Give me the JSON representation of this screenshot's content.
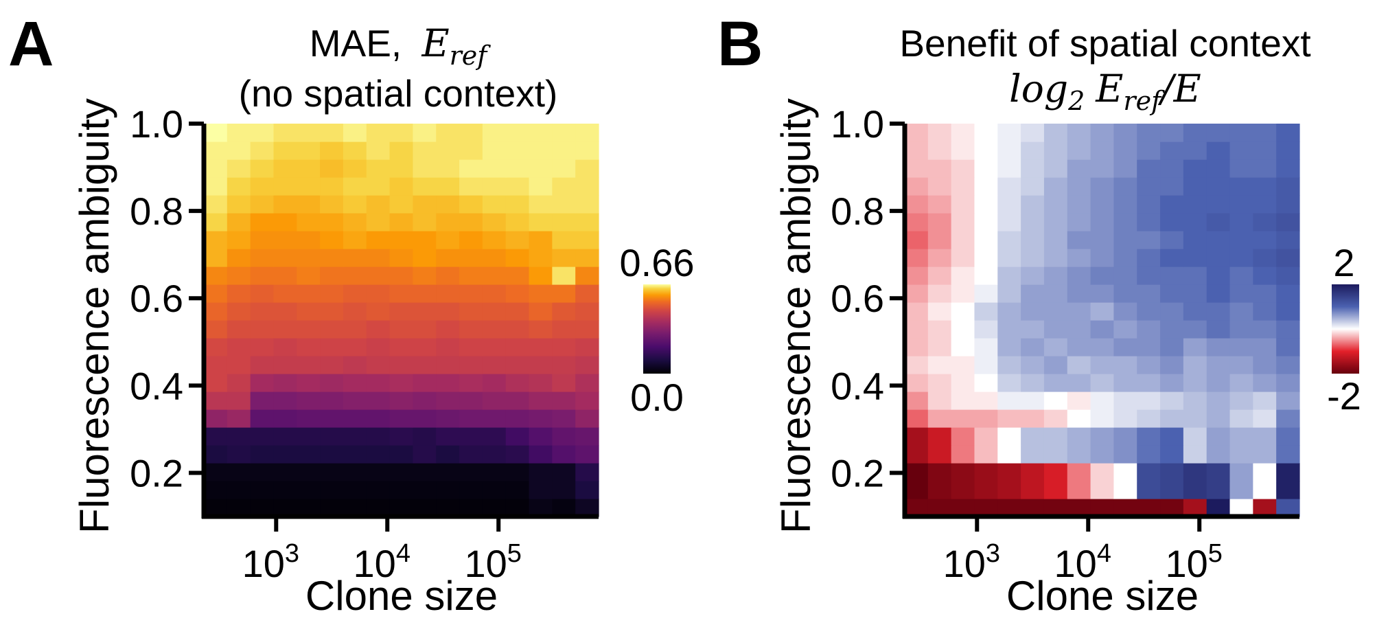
{
  "panel_labels": [
    "A",
    "B"
  ],
  "chart_data": [
    {
      "type": "heatmap",
      "panel": "A",
      "title_line1_text": "MAE,",
      "title_line1_math": {
        "base": "E",
        "sub": "ref"
      },
      "title_line2": "(no spatial context)",
      "xlabel": "Clone size",
      "ylabel": "Fluorescence ambiguity",
      "x_scale": "log10",
      "x_ticks": [
        {
          "base": "10",
          "exp": "3",
          "log": 3
        },
        {
          "base": "10",
          "exp": "4",
          "log": 4
        },
        {
          "base": "10",
          "exp": "5",
          "log": 5
        }
      ],
      "x_range_log10": [
        2.35,
        5.9
      ],
      "y_ticks": [
        "0.2",
        "0.4",
        "0.6",
        "0.8",
        "1.0"
      ],
      "y_tick_values": [
        0.2,
        0.4,
        0.6,
        0.8,
        1.0
      ],
      "y_range": [
        0.1,
        1.0
      ],
      "rows": 22,
      "cols": 17,
      "colormap": "inferno",
      "colorbar": {
        "max_label": "0.66",
        "min_label": "0.0",
        "max": 0.66,
        "min": 0.0
      },
      "grid": false,
      "values": [
        [
          0.01,
          0.01,
          0.01,
          0.01,
          0.01,
          0.01,
          0.01,
          0.01,
          0.01,
          0.01,
          0.01,
          0.01,
          0.01,
          0.01,
          0.03,
          0.02,
          0.05
        ],
        [
          0.02,
          0.02,
          0.02,
          0.02,
          0.02,
          0.02,
          0.02,
          0.02,
          0.02,
          0.02,
          0.02,
          0.02,
          0.02,
          0.02,
          0.05,
          0.05,
          0.1
        ],
        [
          0.03,
          0.03,
          0.03,
          0.03,
          0.03,
          0.03,
          0.03,
          0.03,
          0.03,
          0.03,
          0.03,
          0.03,
          0.03,
          0.03,
          0.05,
          0.05,
          0.12
        ],
        [
          0.1,
          0.11,
          0.1,
          0.1,
          0.1,
          0.1,
          0.1,
          0.1,
          0.1,
          0.12,
          0.1,
          0.12,
          0.12,
          0.13,
          0.18,
          0.22,
          0.24
        ],
        [
          0.12,
          0.12,
          0.12,
          0.12,
          0.12,
          0.12,
          0.12,
          0.12,
          0.13,
          0.12,
          0.14,
          0.14,
          0.14,
          0.18,
          0.22,
          0.25,
          0.26
        ],
        [
          0.34,
          0.36,
          0.24,
          0.24,
          0.25,
          0.25,
          0.25,
          0.25,
          0.26,
          0.26,
          0.27,
          0.28,
          0.28,
          0.28,
          0.29,
          0.3,
          0.34
        ],
        [
          0.42,
          0.42,
          0.3,
          0.3,
          0.31,
          0.31,
          0.32,
          0.32,
          0.33,
          0.32,
          0.33,
          0.33,
          0.34,
          0.34,
          0.36,
          0.36,
          0.38
        ],
        [
          0.46,
          0.44,
          0.38,
          0.37,
          0.38,
          0.37,
          0.38,
          0.38,
          0.39,
          0.38,
          0.38,
          0.39,
          0.38,
          0.4,
          0.41,
          0.43,
          0.4
        ],
        [
          0.46,
          0.46,
          0.44,
          0.44,
          0.44,
          0.44,
          0.43,
          0.44,
          0.44,
          0.44,
          0.44,
          0.44,
          0.44,
          0.44,
          0.44,
          0.44,
          0.43
        ],
        [
          0.47,
          0.46,
          0.46,
          0.45,
          0.46,
          0.46,
          0.46,
          0.45,
          0.46,
          0.46,
          0.45,
          0.46,
          0.46,
          0.46,
          0.46,
          0.46,
          0.45
        ],
        [
          0.5,
          0.48,
          0.48,
          0.48,
          0.48,
          0.48,
          0.48,
          0.47,
          0.48,
          0.48,
          0.47,
          0.48,
          0.48,
          0.48,
          0.49,
          0.48,
          0.48
        ],
        [
          0.52,
          0.5,
          0.49,
          0.49,
          0.5,
          0.5,
          0.49,
          0.5,
          0.49,
          0.49,
          0.49,
          0.5,
          0.5,
          0.5,
          0.52,
          0.5,
          0.49
        ],
        [
          0.54,
          0.52,
          0.51,
          0.52,
          0.52,
          0.52,
          0.51,
          0.51,
          0.52,
          0.52,
          0.52,
          0.52,
          0.52,
          0.53,
          0.54,
          0.54,
          0.51
        ],
        [
          0.56,
          0.55,
          0.54,
          0.54,
          0.55,
          0.54,
          0.54,
          0.54,
          0.54,
          0.55,
          0.54,
          0.55,
          0.55,
          0.55,
          0.58,
          0.64,
          0.56
        ],
        [
          0.6,
          0.57,
          0.56,
          0.56,
          0.56,
          0.56,
          0.56,
          0.56,
          0.57,
          0.58,
          0.57,
          0.57,
          0.57,
          0.58,
          0.59,
          0.6,
          0.6
        ],
        [
          0.6,
          0.59,
          0.57,
          0.57,
          0.57,
          0.58,
          0.59,
          0.58,
          0.58,
          0.58,
          0.59,
          0.58,
          0.59,
          0.6,
          0.59,
          0.62,
          0.62
        ],
        [
          0.63,
          0.6,
          0.58,
          0.58,
          0.59,
          0.59,
          0.6,
          0.61,
          0.6,
          0.61,
          0.6,
          0.6,
          0.61,
          0.62,
          0.63,
          0.63,
          0.63
        ],
        [
          0.64,
          0.62,
          0.61,
          0.6,
          0.6,
          0.61,
          0.62,
          0.61,
          0.62,
          0.61,
          0.61,
          0.62,
          0.63,
          0.63,
          0.64,
          0.64,
          0.64
        ],
        [
          0.65,
          0.63,
          0.62,
          0.62,
          0.62,
          0.62,
          0.63,
          0.63,
          0.62,
          0.63,
          0.63,
          0.64,
          0.64,
          0.64,
          0.65,
          0.64,
          0.64
        ],
        [
          0.65,
          0.64,
          0.63,
          0.62,
          0.62,
          0.61,
          0.62,
          0.63,
          0.63,
          0.64,
          0.64,
          0.65,
          0.65,
          0.65,
          0.65,
          0.65,
          0.64
        ],
        [
          0.65,
          0.65,
          0.64,
          0.63,
          0.63,
          0.62,
          0.63,
          0.64,
          0.63,
          0.64,
          0.64,
          0.64,
          0.65,
          0.65,
          0.65,
          0.65,
          0.65
        ],
        [
          0.66,
          0.65,
          0.65,
          0.64,
          0.64,
          0.64,
          0.65,
          0.64,
          0.64,
          0.65,
          0.64,
          0.64,
          0.65,
          0.65,
          0.65,
          0.65,
          0.65
        ]
      ]
    },
    {
      "type": "heatmap",
      "panel": "B",
      "title_line1": "Benefit of spatial context",
      "title_line2_math": {
        "log": "log",
        "logsub": "2",
        "num": "E",
        "numsub": "ref",
        "den": "E"
      },
      "xlabel": "Clone size",
      "ylabel": "Fluorescence ambiguity",
      "x_scale": "log10",
      "x_ticks": [
        {
          "base": "10",
          "exp": "3",
          "log": 3
        },
        {
          "base": "10",
          "exp": "4",
          "log": 4
        },
        {
          "base": "10",
          "exp": "5",
          "log": 5
        }
      ],
      "x_range_log10": [
        2.35,
        5.9
      ],
      "y_ticks": [
        "0.2",
        "0.4",
        "0.6",
        "0.8",
        "1.0"
      ],
      "y_tick_values": [
        0.2,
        0.4,
        0.6,
        0.8,
        1.0
      ],
      "y_range": [
        0.1,
        1.0
      ],
      "rows": 22,
      "cols": 17,
      "colormap": "diverging red-white-blue",
      "colorbar": {
        "max_label": "2",
        "min_label": "-2",
        "max": 2,
        "min": -2
      },
      "grid": false,
      "values": [
        [
          -1.9,
          -1.9,
          -1.9,
          -1.9,
          -1.9,
          -1.9,
          -1.9,
          -1.9,
          -1.9,
          -1.9,
          -1.9,
          -1.9,
          -1.5,
          2.0,
          0.0,
          -1.5,
          1.2
        ],
        [
          -2.0,
          -1.8,
          -1.7,
          -1.6,
          -1.5,
          -1.3,
          -1.1,
          -0.6,
          -0.2,
          0.0,
          1.3,
          1.4,
          1.6,
          1.5,
          0.6,
          0.0,
          1.9
        ],
        [
          -2.0,
          -1.8,
          -1.7,
          -1.6,
          -1.5,
          -1.3,
          -1.1,
          -0.6,
          -0.2,
          0.0,
          1.3,
          1.4,
          1.6,
          1.5,
          0.6,
          0.0,
          1.9
        ],
        [
          -1.5,
          -1.2,
          -0.6,
          -0.3,
          0.0,
          0.4,
          0.4,
          0.5,
          0.6,
          0.7,
          0.9,
          1.0,
          0.3,
          0.6,
          0.5,
          0.5,
          0.9
        ],
        [
          -1.5,
          -1.2,
          -0.6,
          -0.3,
          0.0,
          0.4,
          0.4,
          0.5,
          0.6,
          0.7,
          0.9,
          1.0,
          0.3,
          0.6,
          0.5,
          0.5,
          0.9
        ],
        [
          -0.7,
          -0.4,
          -0.4,
          -0.4,
          -0.3,
          -0.3,
          -0.2,
          0.0,
          0.1,
          0.2,
          0.3,
          0.4,
          0.4,
          0.5,
          0.3,
          0.2,
          0.8
        ],
        [
          -0.5,
          -0.2,
          -0.1,
          -0.1,
          0.1,
          0.1,
          0.0,
          -0.1,
          0.1,
          0.2,
          0.2,
          0.3,
          0.4,
          0.5,
          0.4,
          0.3,
          0.6
        ],
        [
          -0.3,
          -0.2,
          -0.1,
          0.0,
          0.3,
          0.4,
          0.5,
          0.5,
          0.4,
          0.5,
          0.5,
          0.6,
          0.5,
          0.6,
          0.5,
          0.6,
          0.7
        ],
        [
          -0.2,
          -0.1,
          -0.1,
          0.1,
          0.4,
          0.5,
          0.6,
          0.4,
          0.5,
          0.5,
          0.6,
          0.7,
          0.5,
          0.6,
          0.6,
          0.7,
          0.8
        ],
        [
          -0.3,
          -0.2,
          0.0,
          0.1,
          0.5,
          0.6,
          0.5,
          0.6,
          0.6,
          0.7,
          0.7,
          0.8,
          0.6,
          0.7,
          0.7,
          0.7,
          0.9
        ],
        [
          -0.3,
          -0.2,
          0.0,
          0.2,
          0.5,
          0.5,
          0.6,
          0.6,
          0.7,
          0.6,
          0.7,
          0.8,
          0.8,
          0.9,
          0.8,
          0.8,
          0.9
        ],
        [
          -0.3,
          -0.1,
          0.0,
          0.3,
          0.5,
          0.6,
          0.6,
          0.6,
          0.5,
          0.7,
          0.8,
          0.8,
          0.9,
          0.9,
          0.8,
          0.9,
          1.0
        ],
        [
          -0.4,
          -0.2,
          -0.1,
          0.1,
          0.4,
          0.6,
          0.6,
          0.7,
          0.7,
          0.8,
          0.8,
          0.9,
          0.9,
          1.0,
          0.9,
          0.9,
          1.0
        ],
        [
          -0.5,
          -0.3,
          -0.1,
          0.0,
          0.4,
          0.5,
          0.6,
          0.7,
          0.8,
          0.8,
          0.9,
          0.9,
          0.9,
          1.0,
          0.9,
          1.0,
          1.1
        ],
        [
          -0.6,
          -0.4,
          -0.2,
          0.0,
          0.3,
          0.4,
          0.5,
          0.6,
          0.7,
          0.8,
          0.9,
          1.0,
          1.0,
          1.0,
          1.0,
          1.1,
          1.2
        ],
        [
          -0.7,
          -0.5,
          -0.2,
          0.0,
          0.3,
          0.4,
          0.5,
          0.7,
          0.7,
          0.8,
          0.8,
          0.9,
          1.0,
          1.0,
          1.0,
          1.0,
          1.1
        ],
        [
          -0.6,
          -0.5,
          -0.2,
          0.0,
          0.2,
          0.4,
          0.5,
          0.6,
          0.7,
          0.8,
          0.9,
          1.0,
          1.0,
          1.1,
          1.0,
          1.1,
          1.2
        ],
        [
          -0.5,
          -0.4,
          -0.2,
          0.0,
          0.2,
          0.4,
          0.5,
          0.6,
          0.7,
          0.8,
          0.9,
          1.0,
          1.0,
          1.0,
          1.0,
          1.0,
          1.1
        ],
        [
          -0.4,
          -0.3,
          -0.2,
          0.0,
          0.2,
          0.3,
          0.5,
          0.6,
          0.7,
          0.8,
          0.9,
          0.9,
          1.0,
          1.0,
          1.0,
          1.0,
          1.1
        ],
        [
          -0.3,
          -0.3,
          -0.2,
          0.0,
          0.1,
          0.3,
          0.4,
          0.6,
          0.6,
          0.7,
          0.9,
          0.9,
          1.0,
          1.0,
          0.9,
          0.9,
          1.0
        ],
        [
          -0.3,
          -0.2,
          -0.1,
          0.0,
          0.1,
          0.3,
          0.4,
          0.5,
          0.6,
          0.7,
          0.8,
          0.9,
          0.9,
          1.0,
          0.9,
          0.9,
          1.0
        ],
        [
          -0.3,
          -0.2,
          -0.1,
          0.0,
          0.1,
          0.2,
          0.4,
          0.5,
          0.6,
          0.7,
          0.8,
          0.8,
          0.9,
          0.9,
          0.9,
          0.9,
          1.0
        ]
      ]
    }
  ]
}
